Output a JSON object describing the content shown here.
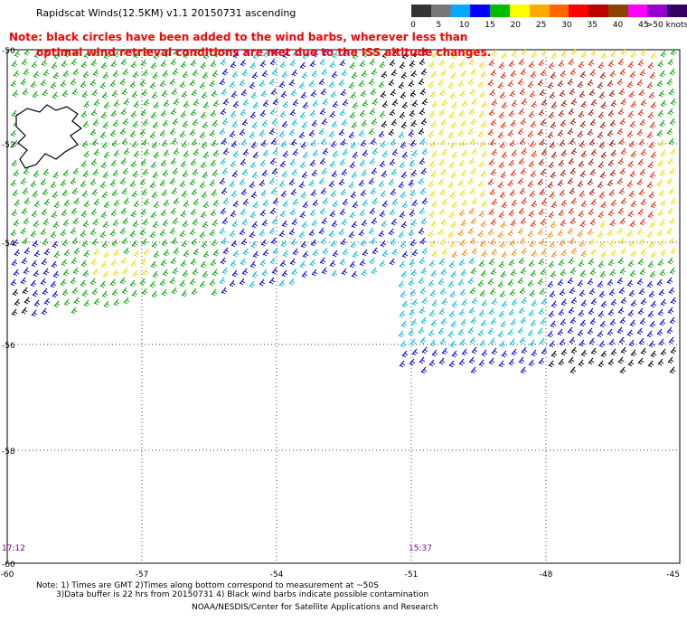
{
  "header": {
    "title": "Rapidscat Winds(12.5KM) v1.1 20150731 ascending",
    "note_line1": "Note: black circles have been added to the wind barbs, wherever less than",
    "note_line2": "optimal wind retrieval conditions are met due to the ISS altitude changes."
  },
  "legend": {
    "colors": [
      "#333333",
      "#777777",
      "#00aaff",
      "#0000ff",
      "#00bb00",
      "#ffff00",
      "#ffaa00",
      "#ff6600",
      "#ff0000",
      "#bb0000",
      "#884400",
      "#ff00ff",
      "#9900cc",
      "#330066"
    ],
    "labels": [
      "0",
      "5",
      "10",
      "15",
      "20",
      "25",
      "30",
      "35",
      "40",
      "45",
      ">50 knots"
    ]
  },
  "map": {
    "lat_labels": [
      "-50",
      "-52",
      "-54",
      "-56",
      "-58",
      "-60"
    ],
    "lon_labels": [
      "-60",
      "-57",
      "-54",
      "-51",
      "-48",
      "-45"
    ],
    "time_labels": [
      "17:12",
      "15:37"
    ]
  },
  "footer": {
    "line1": "Note: 1) Times are GMT 2)Times along bottom correspond to measurement at ~50S",
    "line2": "3)Data buffer is 22 hrs from 20150731 4) Black wind barbs indicate possible contamination",
    "line3": "NOAA/NESDIS/Center for Satellite Applications and Research"
  }
}
